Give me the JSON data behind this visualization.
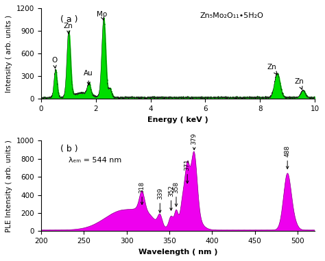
{
  "panel_a": {
    "title": "( a )",
    "formula": "Zn₅Mo₂O₁₁•5H₂O",
    "xlabel": "Energy ( keV )",
    "ylabel": "Intensity ( arb. units )",
    "xlim": [
      0,
      10
    ],
    "ylim": [
      0,
      1200
    ],
    "yticks": [
      0,
      300,
      600,
      900,
      1200
    ],
    "xticks": [
      0,
      2,
      4,
      6,
      8,
      10
    ],
    "fill_color": "#00dd00",
    "line_color": "#222222"
  },
  "panel_b": {
    "title": "( b )",
    "xlabel": "Wavelength ( nm )",
    "ylabel": "PLE Intensity ( arb. units )",
    "annotation": "λₑₘ = 544 nm",
    "xlim": [
      200,
      520
    ],
    "ylim": [
      0,
      1000
    ],
    "yticks": [
      0,
      200,
      400,
      600,
      800,
      1000
    ],
    "xticks": [
      200,
      250,
      300,
      350,
      400,
      450,
      500
    ],
    "fill_color": "#ee00ee",
    "line_color": "#880088"
  },
  "bg_color": "#ffffff"
}
